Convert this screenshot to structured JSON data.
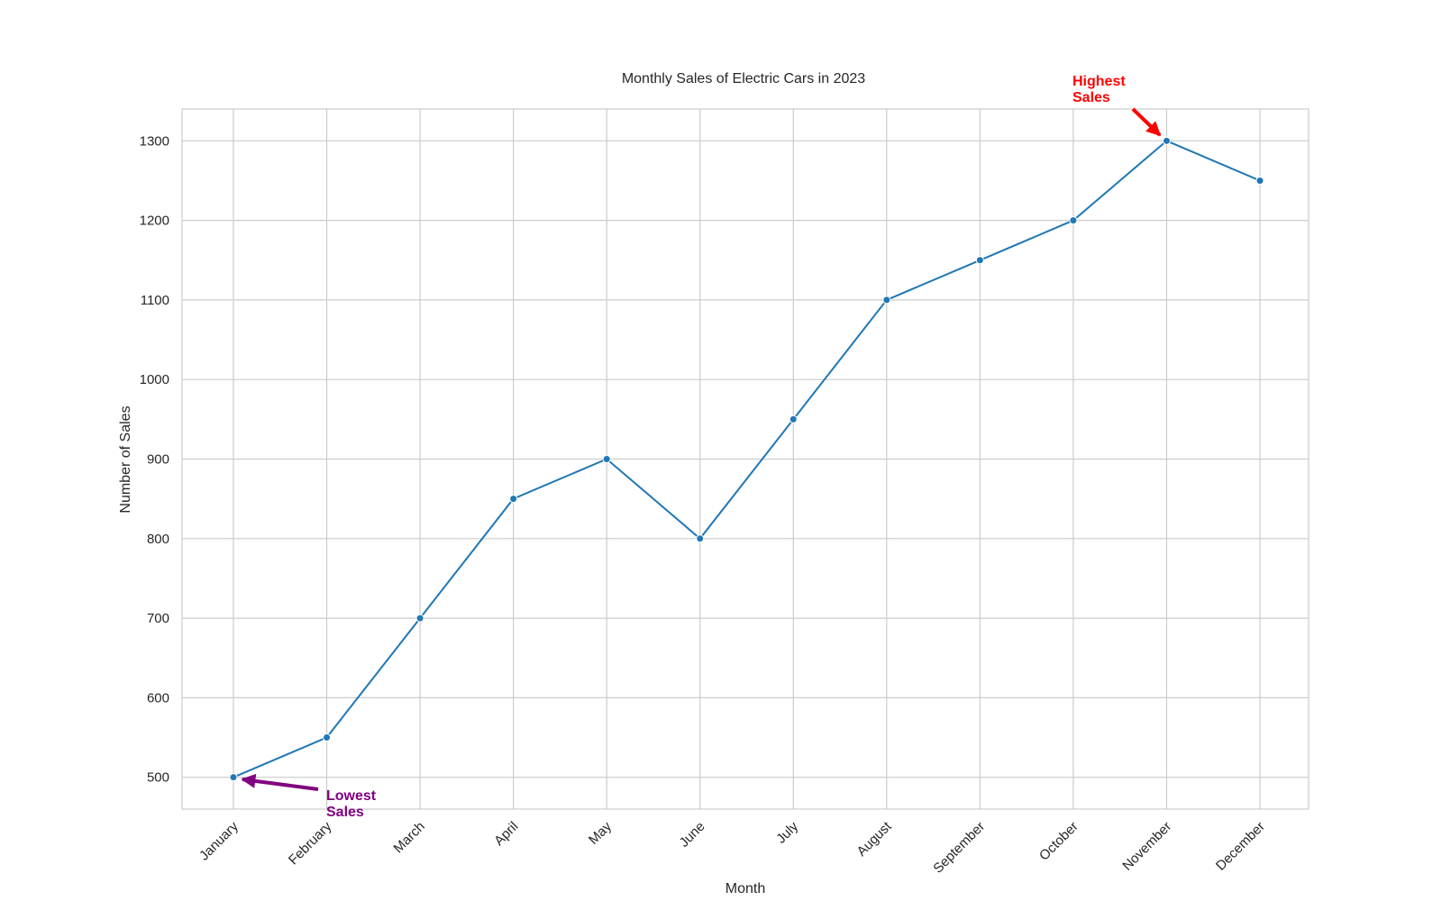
{
  "chart_data": {
    "type": "line",
    "title": "Monthly Sales of Electric Cars in 2023",
    "xlabel": "Month",
    "ylabel": "Number of Sales",
    "categories": [
      "January",
      "February",
      "March",
      "April",
      "May",
      "June",
      "July",
      "August",
      "September",
      "October",
      "November",
      "December"
    ],
    "series": [
      {
        "values": [
          500,
          550,
          700,
          850,
          900,
          800,
          950,
          1100,
          1150,
          1200,
          1300,
          1250
        ],
        "color": "#1f77b4"
      }
    ],
    "ylim": [
      460,
      1340
    ],
    "yticks": [
      500,
      600,
      700,
      800,
      900,
      1000,
      1100,
      1200,
      1300
    ],
    "grid": true,
    "annotations": [
      {
        "line1": "Highest",
        "line2": "Sales",
        "point_index": 10,
        "color": "#ff0000"
      },
      {
        "line1": "Lowest",
        "line2": "Sales",
        "point_index": 0,
        "color": "#800080"
      }
    ]
  }
}
